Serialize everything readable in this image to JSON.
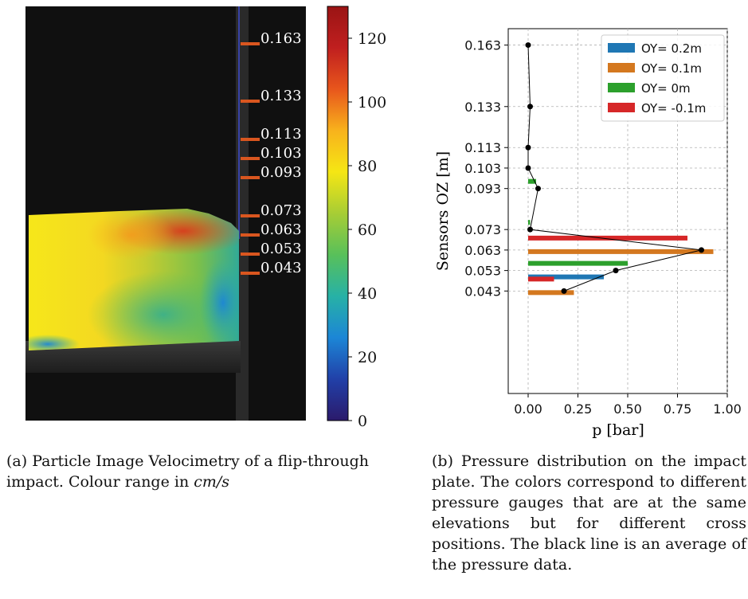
{
  "panel_a": {
    "sensor_labels": [
      "0.163",
      "0.133",
      "0.113",
      "0.103",
      "0.093",
      "0.073",
      "0.063",
      "0.053",
      "0.043"
    ],
    "colorbar": {
      "ticks": [
        "0",
        "20",
        "40",
        "60",
        "80",
        "100",
        "120"
      ],
      "range": [
        0,
        130
      ],
      "colormap": [
        "#2b1a6b",
        "#2140a8",
        "#1c86d6",
        "#27b1a6",
        "#58c05a",
        "#a7cd35",
        "#f5e614",
        "#f8b21c",
        "#e8561c",
        "#c01f1f",
        "#9a1414"
      ]
    },
    "caption_prefix": "(a) Particle Image Velocimetry of a flip-through impact. Colour range in ",
    "caption_unit": "cm/s"
  },
  "panel_b": {
    "caption": "(b) Pressure distribution on the impact plate. The colors correspond to different pressure gauges that are at the same elevations but for different cross positions. The black line is an average of the pressure data."
  },
  "chart_data": {
    "type": "bar",
    "orientation": "horizontal",
    "ylabel": "Sensors OZ [m]",
    "xlabel": "p [bar]",
    "xlim": [
      -0.1,
      1.0
    ],
    "ylim": [
      -0.007,
      0.171
    ],
    "xticks": [
      "0.00",
      "0.25",
      "0.50",
      "0.75",
      "1.00"
    ],
    "yticks": [
      "0.043",
      "0.053",
      "0.063",
      "0.073",
      "0.093",
      "0.103",
      "0.113",
      "0.133",
      "0.163"
    ],
    "grid": true,
    "legend_position": "top-right",
    "categories": [
      0.043,
      0.053,
      0.063,
      0.073,
      0.093,
      0.103,
      0.113,
      0.133,
      0.163
    ],
    "series": [
      {
        "name": "OY= 0.2m",
        "color": "#1f77b4",
        "values": [
          0.0,
          0.38,
          0.0,
          0.0,
          0.0,
          0.0,
          0.0,
          0.0,
          0.0
        ]
      },
      {
        "name": "OY= 0.1m",
        "color": "#d4781f",
        "values": [
          0.23,
          0.0,
          0.93,
          0.0,
          0.0,
          0.0,
          0.0,
          0.0,
          0.0
        ]
      },
      {
        "name": "OY= 0m",
        "color": "#2ca02c",
        "values": [
          0.0,
          0.5,
          0.0,
          0.01,
          0.04,
          0.0,
          0.0,
          0.0,
          0.0
        ]
      },
      {
        "name": "OY= -0.1m",
        "color": "#d62728",
        "values": [
          0.13,
          0.0,
          0.8,
          0.0,
          0.0,
          0.0,
          0.0,
          0.0,
          0.0
        ]
      }
    ],
    "average_line": {
      "color": "#000000",
      "points": [
        [
          0.18,
          0.043
        ],
        [
          0.44,
          0.053
        ],
        [
          0.87,
          0.063
        ],
        [
          0.01,
          0.073
        ],
        [
          0.05,
          0.093
        ],
        [
          0.0,
          0.103
        ],
        [
          0.0,
          0.113
        ],
        [
          0.01,
          0.133
        ],
        [
          0.0,
          0.163
        ]
      ]
    }
  }
}
